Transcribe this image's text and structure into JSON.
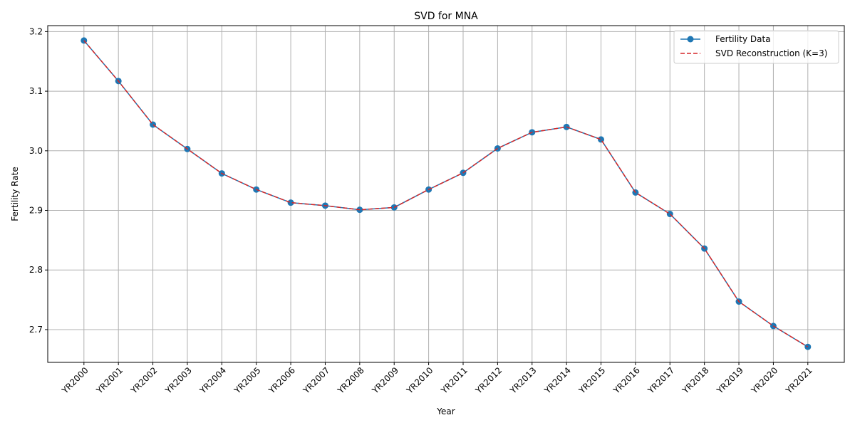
{
  "chart_data": {
    "type": "line",
    "title": "SVD for MNA",
    "xlabel": "Year",
    "ylabel": "Fertility Rate",
    "categories": [
      "YR2000",
      "YR2001",
      "YR2002",
      "YR2003",
      "YR2004",
      "YR2005",
      "YR2006",
      "YR2007",
      "YR2008",
      "YR2009",
      "YR2010",
      "YR2011",
      "YR2012",
      "YR2013",
      "YR2014",
      "YR2015",
      "YR2016",
      "YR2017",
      "YR2018",
      "YR2019",
      "YR2020",
      "YR2021"
    ],
    "ylim": [
      2.645,
      3.21
    ],
    "yticks": [
      2.7,
      2.8,
      2.9,
      3.0,
      3.1,
      3.2
    ],
    "ytick_labels": [
      "2.7",
      "2.8",
      "2.9",
      "3.0",
      "3.1",
      "3.2"
    ],
    "grid": true,
    "legend_position": "top-right",
    "series": [
      {
        "name": "Fertility Data",
        "style": "solid line with circle markers",
        "color": "#1f77b4",
        "values": [
          3.185,
          3.117,
          3.044,
          3.003,
          2.962,
          2.935,
          2.913,
          2.908,
          2.901,
          2.905,
          2.935,
          2.963,
          3.004,
          3.031,
          3.04,
          3.019,
          2.93,
          2.894,
          2.836,
          2.747,
          2.706,
          2.671
        ]
      },
      {
        "name": "SVD Reconstruction (K=3)",
        "style": "dashed line",
        "color": "#d62728",
        "values": [
          3.185,
          3.117,
          3.044,
          3.003,
          2.962,
          2.935,
          2.913,
          2.908,
          2.901,
          2.905,
          2.935,
          2.963,
          3.004,
          3.031,
          3.04,
          3.019,
          2.93,
          2.894,
          2.836,
          2.747,
          2.706,
          2.671
        ]
      }
    ]
  }
}
